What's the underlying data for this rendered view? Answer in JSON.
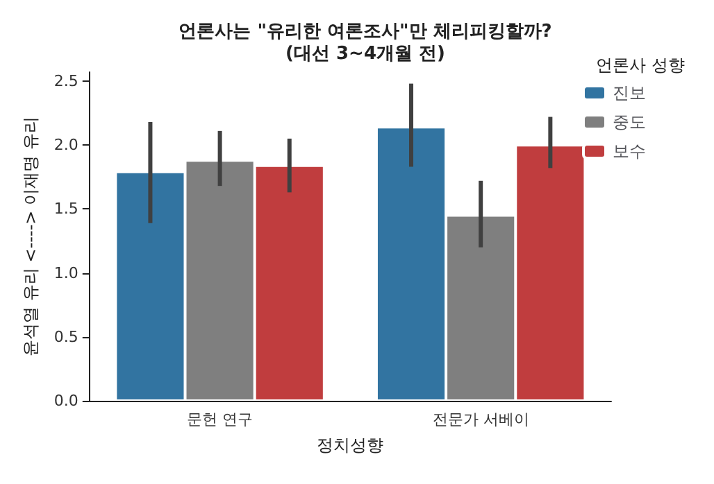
{
  "chart_data": {
    "type": "bar",
    "title": "언론사는 \"유리한 여론조사\"만 체리피킹할까?\n(대선 3~4개월 전)",
    "xlabel": "정치성향",
    "ylabel": "윤석열 유리 <----> 이재명 유리",
    "legend_title": "언론사 성향",
    "categories": [
      "문헌 연구",
      "전문가 서베이"
    ],
    "series": [
      {
        "name": "진보",
        "color": "#3274a1",
        "values": [
          1.79,
          2.14
        ],
        "errors": [
          [
            1.39,
            2.18
          ],
          [
            1.83,
            2.48
          ]
        ]
      },
      {
        "name": "중도",
        "color": "#7f7f7f",
        "values": [
          1.88,
          1.45
        ],
        "errors": [
          [
            1.68,
            2.11
          ],
          [
            1.2,
            1.72
          ]
        ]
      },
      {
        "name": "보수",
        "color": "#c03d3e",
        "values": [
          1.84,
          2.0
        ],
        "errors": [
          [
            1.63,
            2.05
          ],
          [
            1.82,
            2.22
          ]
        ]
      }
    ],
    "ylim": [
      0,
      2.57
    ],
    "yticks": [
      {
        "value": 0,
        "label": "0.0"
      },
      0.5,
      {
        "value": 1,
        "label": "1.0"
      },
      1.5,
      {
        "value": 2,
        "label": "2.0"
      },
      2.5
    ],
    "grid": false,
    "legend": "top right"
  }
}
